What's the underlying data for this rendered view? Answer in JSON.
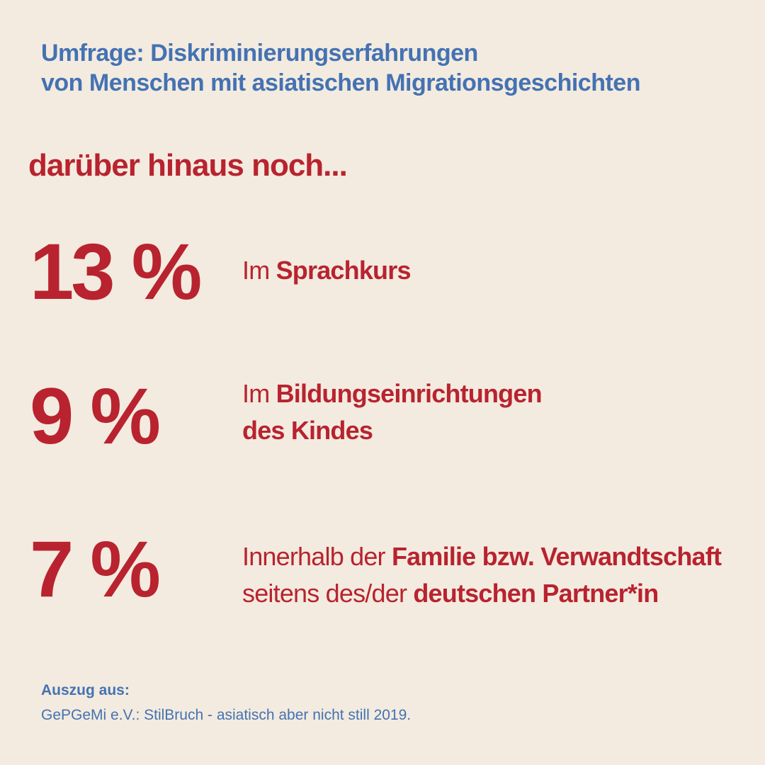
{
  "header": {
    "title_line1": "Umfrage: Diskriminierungserfahrungen",
    "title_line2": "von Menschen mit asiatischen Migrationsgeschichten"
  },
  "intro": "darüber hinaus noch...",
  "stats": [
    {
      "value": "13 %",
      "desc_line1": {
        "plain": "Im ",
        "bold": "Sprachkurs"
      }
    },
    {
      "value": "9 %",
      "desc_line1": {
        "plain": "Im ",
        "bold": "Bildungseinrichtungen"
      },
      "desc_line2": {
        "plain": "",
        "bold": "des Kindes"
      }
    },
    {
      "value": "7 %",
      "desc_line1": {
        "plain": "Innerhalb der ",
        "bold": "Familie bzw. Verwandtschaft"
      },
      "desc_line2": {
        "plain": "seitens des/der ",
        "bold": "deutschen Partner*in"
      }
    }
  ],
  "footer": {
    "label": "Auszug aus:",
    "source": "GePGeMi e.V.: StilBruch - asiatisch aber nicht still 2019."
  },
  "colors": {
    "background": "#f3ebdf",
    "accent_red": "#b8232f",
    "accent_blue": "#4472b3"
  }
}
